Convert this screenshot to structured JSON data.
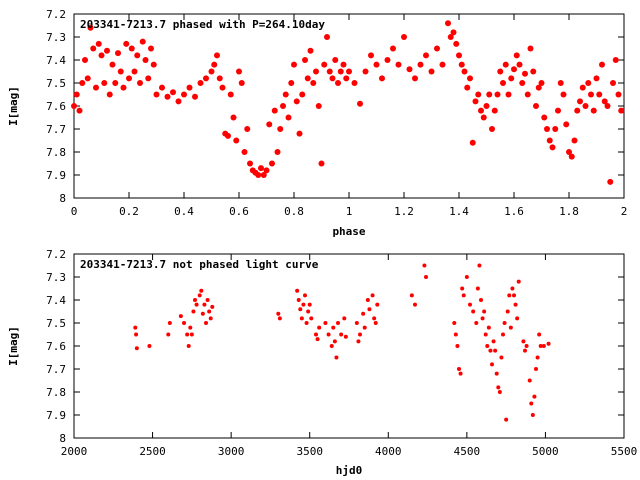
{
  "colors": {
    "points": "#ff0000",
    "axes": "#000000",
    "background": "#ffffff"
  },
  "chart_data": [
    {
      "type": "scatter",
      "title": "203341-7213.7 phased with P=264.10day",
      "xlabel": "phase",
      "ylabel": "I[mag]",
      "xlim": [
        0,
        2
      ],
      "ylim": [
        8,
        7.2
      ],
      "y_inverted": true,
      "grid": false,
      "legend": "none",
      "x_ticks": [
        "0",
        "0.2",
        "0.4",
        "0.6",
        "0.8",
        "1",
        "1.2",
        "1.4",
        "1.6",
        "1.8",
        "2"
      ],
      "y_ticks": [
        "7.2",
        "7.3",
        "7.4",
        "7.5",
        "7.6",
        "7.7",
        "7.8",
        "7.9",
        "8"
      ],
      "points": [
        [
          0.0,
          7.6
        ],
        [
          0.01,
          7.55
        ],
        [
          0.02,
          7.62
        ],
        [
          0.03,
          7.5
        ],
        [
          0.04,
          7.4
        ],
        [
          0.05,
          7.48
        ],
        [
          0.06,
          7.26
        ],
        [
          0.07,
          7.35
        ],
        [
          0.08,
          7.52
        ],
        [
          0.09,
          7.33
        ],
        [
          0.1,
          7.38
        ],
        [
          0.11,
          7.5
        ],
        [
          0.12,
          7.36
        ],
        [
          0.13,
          7.55
        ],
        [
          0.14,
          7.42
        ],
        [
          0.15,
          7.5
        ],
        [
          0.16,
          7.37
        ],
        [
          0.17,
          7.45
        ],
        [
          0.18,
          7.52
        ],
        [
          0.19,
          7.33
        ],
        [
          0.2,
          7.48
        ],
        [
          0.21,
          7.35
        ],
        [
          0.22,
          7.45
        ],
        [
          0.23,
          7.38
        ],
        [
          0.24,
          7.5
        ],
        [
          0.25,
          7.32
        ],
        [
          0.26,
          7.4
        ],
        [
          0.27,
          7.48
        ],
        [
          0.28,
          7.35
        ],
        [
          0.29,
          7.42
        ],
        [
          0.3,
          7.55
        ],
        [
          0.32,
          7.52
        ],
        [
          0.34,
          7.56
        ],
        [
          0.36,
          7.54
        ],
        [
          0.38,
          7.58
        ],
        [
          0.4,
          7.55
        ],
        [
          0.42,
          7.52
        ],
        [
          0.44,
          7.56
        ],
        [
          0.46,
          7.5
        ],
        [
          0.48,
          7.48
        ],
        [
          0.5,
          7.45
        ],
        [
          0.51,
          7.42
        ],
        [
          0.52,
          7.38
        ],
        [
          0.53,
          7.48
        ],
        [
          0.54,
          7.52
        ],
        [
          0.55,
          7.72
        ],
        [
          0.56,
          7.73
        ],
        [
          0.57,
          7.55
        ],
        [
          0.58,
          7.65
        ],
        [
          0.59,
          7.75
        ],
        [
          0.6,
          7.45
        ],
        [
          0.61,
          7.5
        ],
        [
          0.62,
          7.8
        ],
        [
          0.63,
          7.7
        ],
        [
          0.64,
          7.85
        ],
        [
          0.65,
          7.88
        ],
        [
          0.66,
          7.89
        ],
        [
          0.67,
          7.9
        ],
        [
          0.68,
          7.87
        ],
        [
          0.69,
          7.9
        ],
        [
          0.7,
          7.88
        ],
        [
          0.71,
          7.68
        ],
        [
          0.72,
          7.85
        ],
        [
          0.73,
          7.62
        ],
        [
          0.74,
          7.8
        ],
        [
          0.75,
          7.7
        ],
        [
          0.76,
          7.6
        ],
        [
          0.77,
          7.55
        ],
        [
          0.78,
          7.65
        ],
        [
          0.79,
          7.5
        ],
        [
          0.8,
          7.42
        ],
        [
          0.81,
          7.58
        ],
        [
          0.82,
          7.72
        ],
        [
          0.83,
          7.55
        ],
        [
          0.84,
          7.4
        ],
        [
          0.85,
          7.48
        ],
        [
          0.86,
          7.36
        ],
        [
          0.87,
          7.5
        ],
        [
          0.88,
          7.45
        ],
        [
          0.89,
          7.6
        ],
        [
          0.9,
          7.85
        ],
        [
          0.91,
          7.42
        ],
        [
          0.92,
          7.3
        ],
        [
          0.93,
          7.45
        ],
        [
          0.94,
          7.48
        ],
        [
          0.95,
          7.4
        ],
        [
          0.96,
          7.5
        ],
        [
          0.97,
          7.45
        ],
        [
          0.98,
          7.42
        ],
        [
          0.99,
          7.48
        ],
        [
          1.0,
          7.45
        ],
        [
          1.02,
          7.5
        ],
        [
          1.04,
          7.59
        ],
        [
          1.06,
          7.45
        ],
        [
          1.08,
          7.38
        ],
        [
          1.1,
          7.42
        ],
        [
          1.12,
          7.48
        ],
        [
          1.14,
          7.4
        ],
        [
          1.16,
          7.35
        ],
        [
          1.18,
          7.42
        ],
        [
          1.2,
          7.3
        ],
        [
          1.22,
          7.44
        ],
        [
          1.24,
          7.48
        ],
        [
          1.26,
          7.42
        ],
        [
          1.28,
          7.38
        ],
        [
          1.3,
          7.45
        ],
        [
          1.32,
          7.35
        ],
        [
          1.34,
          7.42
        ],
        [
          1.36,
          7.24
        ],
        [
          1.37,
          7.3
        ],
        [
          1.38,
          7.28
        ],
        [
          1.39,
          7.33
        ],
        [
          1.4,
          7.38
        ],
        [
          1.41,
          7.42
        ],
        [
          1.42,
          7.45
        ],
        [
          1.43,
          7.52
        ],
        [
          1.44,
          7.48
        ],
        [
          1.45,
          7.76
        ],
        [
          1.46,
          7.58
        ],
        [
          1.47,
          7.55
        ],
        [
          1.48,
          7.62
        ],
        [
          1.49,
          7.65
        ],
        [
          1.5,
          7.6
        ],
        [
          1.51,
          7.55
        ],
        [
          1.52,
          7.7
        ],
        [
          1.53,
          7.62
        ],
        [
          1.54,
          7.55
        ],
        [
          1.55,
          7.45
        ],
        [
          1.56,
          7.5
        ],
        [
          1.57,
          7.42
        ],
        [
          1.58,
          7.55
        ],
        [
          1.59,
          7.48
        ],
        [
          1.6,
          7.44
        ],
        [
          1.61,
          7.38
        ],
        [
          1.62,
          7.42
        ],
        [
          1.63,
          7.5
        ],
        [
          1.64,
          7.46
        ],
        [
          1.65,
          7.55
        ],
        [
          1.66,
          7.35
        ],
        [
          1.67,
          7.45
        ],
        [
          1.68,
          7.6
        ],
        [
          1.69,
          7.52
        ],
        [
          1.7,
          7.5
        ],
        [
          1.71,
          7.65
        ],
        [
          1.72,
          7.7
        ],
        [
          1.73,
          7.75
        ],
        [
          1.74,
          7.78
        ],
        [
          1.75,
          7.7
        ],
        [
          1.76,
          7.62
        ],
        [
          1.77,
          7.5
        ],
        [
          1.78,
          7.55
        ],
        [
          1.79,
          7.68
        ],
        [
          1.8,
          7.8
        ],
        [
          1.81,
          7.82
        ],
        [
          1.82,
          7.75
        ],
        [
          1.83,
          7.62
        ],
        [
          1.84,
          7.58
        ],
        [
          1.85,
          7.52
        ],
        [
          1.86,
          7.6
        ],
        [
          1.87,
          7.5
        ],
        [
          1.88,
          7.55
        ],
        [
          1.89,
          7.62
        ],
        [
          1.9,
          7.48
        ],
        [
          1.91,
          7.55
        ],
        [
          1.92,
          7.42
        ],
        [
          1.93,
          7.58
        ],
        [
          1.94,
          7.6
        ],
        [
          1.95,
          7.93
        ],
        [
          1.96,
          7.5
        ],
        [
          1.97,
          7.4
        ],
        [
          1.98,
          7.55
        ],
        [
          1.99,
          7.62
        ]
      ]
    },
    {
      "type": "scatter",
      "title": "203341-7213.7 not phased light curve",
      "xlabel": "hjd0",
      "ylabel": "I[mag]",
      "xlim": [
        2000,
        5500
      ],
      "ylim": [
        8,
        7.2
      ],
      "y_inverted": true,
      "grid": false,
      "legend": "none",
      "x_ticks": [
        "2000",
        "2500",
        "3000",
        "3500",
        "4000",
        "4500",
        "5000",
        "5500"
      ],
      "y_ticks": [
        "7.2",
        "7.3",
        "7.4",
        "7.5",
        "7.6",
        "7.7",
        "7.8",
        "7.9",
        "8"
      ],
      "points": [
        [
          2390,
          7.52
        ],
        [
          2395,
          7.55
        ],
        [
          2400,
          7.61
        ],
        [
          2480,
          7.6
        ],
        [
          2600,
          7.55
        ],
        [
          2610,
          7.5
        ],
        [
          2680,
          7.47
        ],
        [
          2700,
          7.5
        ],
        [
          2720,
          7.55
        ],
        [
          2730,
          7.6
        ],
        [
          2740,
          7.52
        ],
        [
          2750,
          7.55
        ],
        [
          2760,
          7.45
        ],
        [
          2770,
          7.4
        ],
        [
          2780,
          7.42
        ],
        [
          2800,
          7.38
        ],
        [
          2810,
          7.36
        ],
        [
          2820,
          7.46
        ],
        [
          2830,
          7.42
        ],
        [
          2840,
          7.5
        ],
        [
          2850,
          7.4
        ],
        [
          2860,
          7.45
        ],
        [
          2870,
          7.48
        ],
        [
          2880,
          7.43
        ],
        [
          3300,
          7.46
        ],
        [
          3310,
          7.48
        ],
        [
          3420,
          7.36
        ],
        [
          3430,
          7.4
        ],
        [
          3440,
          7.44
        ],
        [
          3450,
          7.48
        ],
        [
          3460,
          7.42
        ],
        [
          3470,
          7.38
        ],
        [
          3480,
          7.5
        ],
        [
          3490,
          7.45
        ],
        [
          3500,
          7.42
        ],
        [
          3510,
          7.48
        ],
        [
          3540,
          7.55
        ],
        [
          3550,
          7.57
        ],
        [
          3560,
          7.52
        ],
        [
          3600,
          7.5
        ],
        [
          3620,
          7.55
        ],
        [
          3640,
          7.6
        ],
        [
          3650,
          7.52
        ],
        [
          3660,
          7.58
        ],
        [
          3670,
          7.65
        ],
        [
          3680,
          7.5
        ],
        [
          3700,
          7.55
        ],
        [
          3720,
          7.48
        ],
        [
          3730,
          7.56
        ],
        [
          3800,
          7.5
        ],
        [
          3810,
          7.58
        ],
        [
          3820,
          7.55
        ],
        [
          3840,
          7.46
        ],
        [
          3850,
          7.52
        ],
        [
          3870,
          7.4
        ],
        [
          3880,
          7.44
        ],
        [
          3900,
          7.38
        ],
        [
          3910,
          7.48
        ],
        [
          3920,
          7.5
        ],
        [
          3930,
          7.42
        ],
        [
          4150,
          7.38
        ],
        [
          4170,
          7.42
        ],
        [
          4230,
          7.25
        ],
        [
          4240,
          7.3
        ],
        [
          4420,
          7.5
        ],
        [
          4430,
          7.55
        ],
        [
          4440,
          7.6
        ],
        [
          4450,
          7.7
        ],
        [
          4460,
          7.72
        ],
        [
          4470,
          7.35
        ],
        [
          4480,
          7.38
        ],
        [
          4500,
          7.3
        ],
        [
          4520,
          7.42
        ],
        [
          4540,
          7.45
        ],
        [
          4560,
          7.5
        ],
        [
          4570,
          7.35
        ],
        [
          4580,
          7.25
        ],
        [
          4590,
          7.4
        ],
        [
          4600,
          7.48
        ],
        [
          4610,
          7.45
        ],
        [
          4620,
          7.55
        ],
        [
          4630,
          7.6
        ],
        [
          4640,
          7.52
        ],
        [
          4650,
          7.62
        ],
        [
          4660,
          7.68
        ],
        [
          4670,
          7.58
        ],
        [
          4680,
          7.62
        ],
        [
          4690,
          7.72
        ],
        [
          4700,
          7.78
        ],
        [
          4710,
          7.8
        ],
        [
          4720,
          7.65
        ],
        [
          4730,
          7.55
        ],
        [
          4740,
          7.5
        ],
        [
          4750,
          7.92
        ],
        [
          4760,
          7.45
        ],
        [
          4770,
          7.38
        ],
        [
          4780,
          7.52
        ],
        [
          4790,
          7.35
        ],
        [
          4800,
          7.38
        ],
        [
          4810,
          7.42
        ],
        [
          4820,
          7.48
        ],
        [
          4830,
          7.32
        ],
        [
          4860,
          7.58
        ],
        [
          4870,
          7.62
        ],
        [
          4880,
          7.6
        ],
        [
          4900,
          7.75
        ],
        [
          4910,
          7.85
        ],
        [
          4920,
          7.9
        ],
        [
          4930,
          7.82
        ],
        [
          4940,
          7.7
        ],
        [
          4950,
          7.65
        ],
        [
          4960,
          7.55
        ],
        [
          4970,
          7.6
        ],
        [
          4990,
          7.6
        ],
        [
          5020,
          7.59
        ]
      ]
    }
  ]
}
